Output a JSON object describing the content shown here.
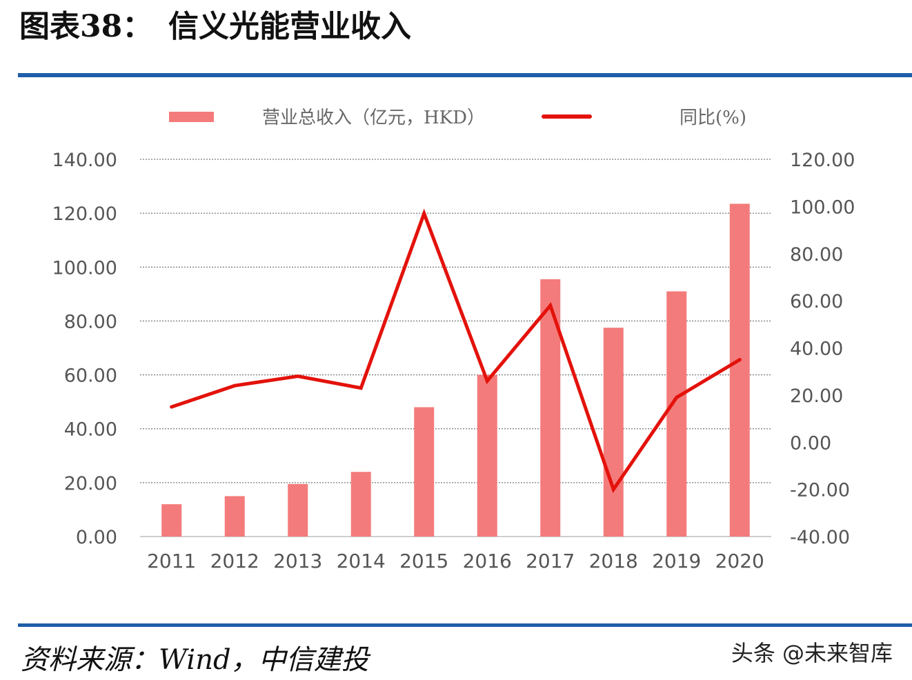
{
  "header": {
    "figure_label": "图表38：",
    "figure_title": "信义光能营业收入"
  },
  "chart_data": {
    "type": "bar",
    "categories": [
      "2011",
      "2012",
      "2013",
      "2014",
      "2015",
      "2016",
      "2017",
      "2018",
      "2019",
      "2020"
    ],
    "series": [
      {
        "name": "营业总收入（亿元，HKD）",
        "type": "bar",
        "axis": "left",
        "color": "#f47b7b",
        "values": [
          12.0,
          15.0,
          19.5,
          24.0,
          48.0,
          60.0,
          95.5,
          77.5,
          91.0,
          123.5
        ]
      },
      {
        "name": "同比(%)",
        "type": "line",
        "axis": "right",
        "color": "#e3120b",
        "values": [
          15.0,
          24.0,
          28.0,
          23.0,
          97.0,
          26.0,
          58.0,
          -20.0,
          19.0,
          35.0
        ]
      }
    ],
    "left_axis": {
      "ylim": [
        0,
        140
      ],
      "ticks": [
        "0.00",
        "20.00",
        "40.00",
        "60.00",
        "80.00",
        "100.00",
        "120.00",
        "140.00"
      ]
    },
    "right_axis": {
      "ylim": [
        -40,
        120
      ],
      "ticks": [
        "-40.00",
        "-20.00",
        "0.00",
        "20.00",
        "40.00",
        "60.00",
        "80.00",
        "100.00",
        "120.00"
      ]
    },
    "grid": true,
    "legend": "top"
  },
  "footer": {
    "source": "资料来源：Wind，中信建投",
    "credit": "头条 @未来智库"
  }
}
